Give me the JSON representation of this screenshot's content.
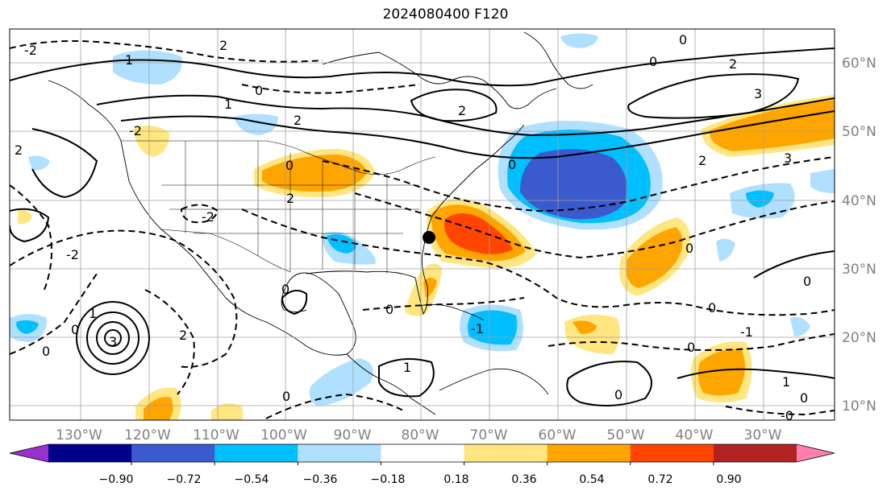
{
  "title": "2024080400 F120",
  "map": {
    "lat_labels": [
      "60°N",
      "50°N",
      "40°N",
      "30°N",
      "20°N",
      "10°N"
    ],
    "lon_labels": [
      "130°W",
      "120°W",
      "110°W",
      "100°W",
      "90°W",
      "80°W",
      "70°W",
      "60°W",
      "50°W",
      "40°W",
      "30°W"
    ],
    "contour_labels": [
      "-2",
      "1",
      "2",
      "0",
      "1",
      "2",
      "2",
      "0",
      "2",
      "3",
      "0",
      "-2",
      "0",
      "2",
      "0",
      "0",
      "0",
      "-2",
      "-2",
      "0",
      "0",
      "3",
      "1",
      "0",
      "2",
      "3",
      "0",
      "0",
      "0",
      "-1",
      "1",
      "0",
      "0",
      "0",
      "-0",
      "1",
      "-1",
      "2",
      "2"
    ],
    "marker": "black-dot"
  },
  "colorbar": {
    "labels": [
      "−0.90",
      "−0.72",
      "−0.54",
      "−0.36",
      "−0.18",
      "0.18",
      "0.36",
      "0.54",
      "0.72",
      "0.90"
    ],
    "colors": [
      "#9932cc",
      "#00008b",
      "#3a5acd",
      "#00bfff",
      "#b0e0ff",
      "#ffffff",
      "#ffe680",
      "#ffa500",
      "#ff4500",
      "#b22222",
      "#ff80b0"
    ]
  }
}
